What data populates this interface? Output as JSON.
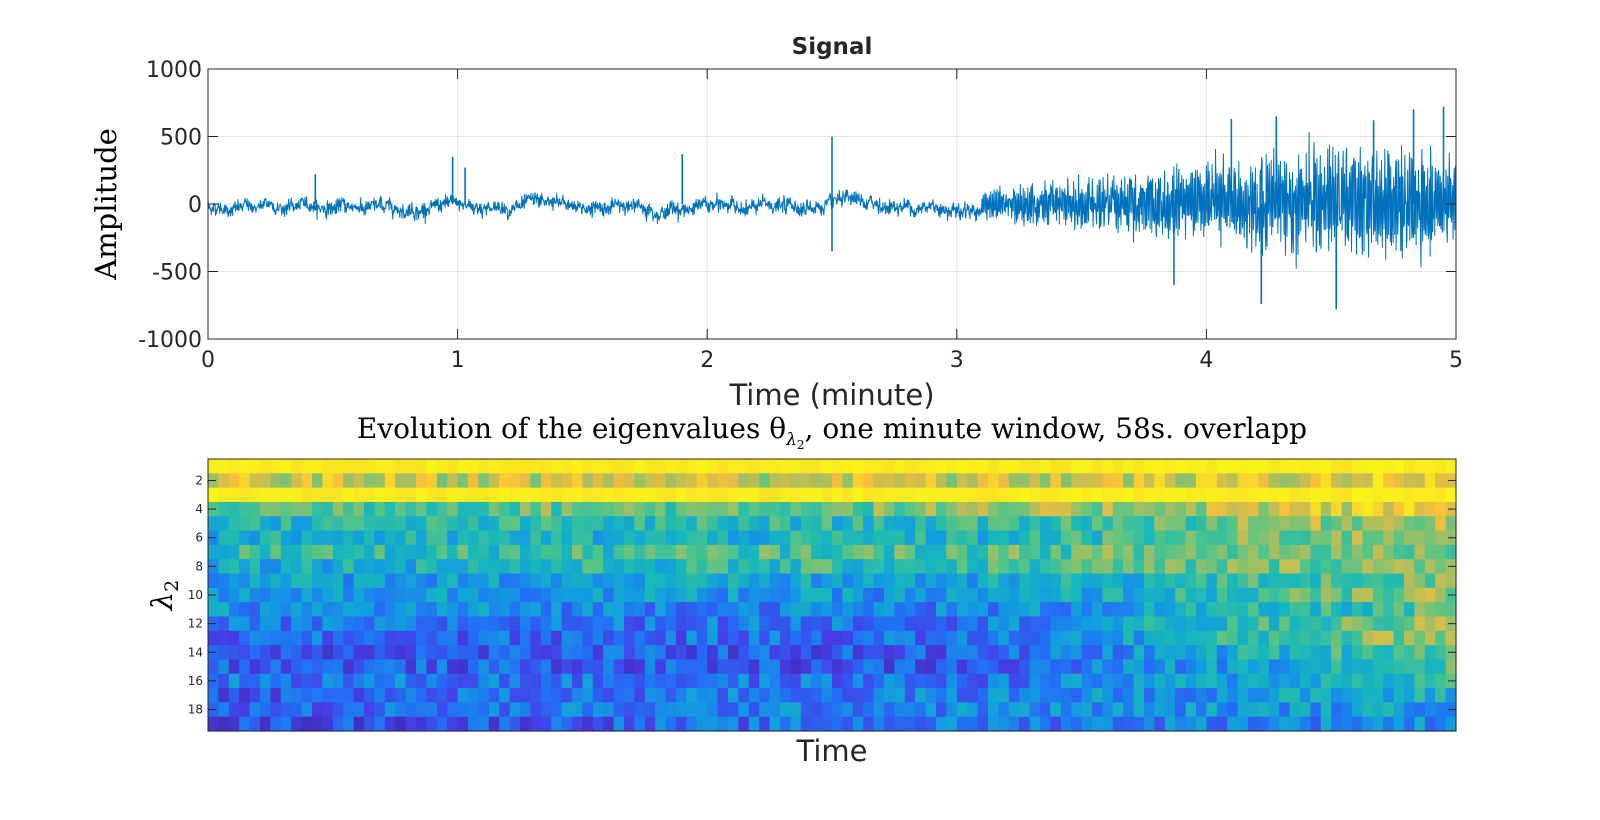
{
  "chart_data": [
    {
      "type": "line",
      "title": "Signal",
      "xlabel": "Time (minute)",
      "ylabel": "Amplitude",
      "xlim": [
        0,
        5
      ],
      "ylim": [
        -1000,
        1000
      ],
      "xticks": [
        0,
        1,
        2,
        3,
        4,
        5
      ],
      "xtick_labels": [
        "0",
        "1",
        "2",
        "3",
        "4",
        "5"
      ],
      "yticks": [
        1000,
        500,
        0,
        -500,
        -1000
      ],
      "ytick_labels": [
        "1000",
        "500",
        "0",
        "-500",
        "-1000"
      ],
      "grid": true,
      "line_color": "#0072bd",
      "envelope": [
        {
          "t": 0.0,
          "amp": 60
        },
        {
          "t": 0.5,
          "amp": 65
        },
        {
          "t": 1.0,
          "amp": 70
        },
        {
          "t": 1.5,
          "amp": 65
        },
        {
          "t": 2.0,
          "amp": 70
        },
        {
          "t": 2.5,
          "amp": 75
        },
        {
          "t": 2.95,
          "amp": 70
        },
        {
          "t": 3.2,
          "amp": 120
        },
        {
          "t": 3.5,
          "amp": 200
        },
        {
          "t": 3.8,
          "amp": 260
        },
        {
          "t": 4.0,
          "amp": 320
        },
        {
          "t": 4.2,
          "amp": 380
        },
        {
          "t": 4.5,
          "amp": 430
        },
        {
          "t": 4.8,
          "amp": 440
        },
        {
          "t": 5.0,
          "amp": 300
        }
      ],
      "spikes": [
        {
          "t": 0.43,
          "value": 220
        },
        {
          "t": 0.98,
          "value": 350
        },
        {
          "t": 1.03,
          "value": 270
        },
        {
          "t": 1.9,
          "value": 370
        },
        {
          "t": 2.5,
          "value": 500
        },
        {
          "t": 2.5,
          "value": -350
        },
        {
          "t": 4.1,
          "value": 630
        },
        {
          "t": 4.28,
          "value": 650
        },
        {
          "t": 4.52,
          "value": -780
        },
        {
          "t": 4.67,
          "value": 620
        },
        {
          "t": 4.83,
          "value": 700
        },
        {
          "t": 4.95,
          "value": 720
        },
        {
          "t": 4.22,
          "value": -740
        },
        {
          "t": 3.87,
          "value": -600
        }
      ]
    },
    {
      "type": "heatmap",
      "title": "Evolution of the eigenvalues θ",
      "title_subscript_symbol": "λ",
      "title_subscript_index": "2",
      "title_suffix": ", one minute window, 58s. overlapp",
      "xlabel": "Time",
      "ylabel_symbol": "λ",
      "ylabel_index": "2",
      "rows": 19,
      "cols": 120,
      "yticks": [
        2,
        4,
        6,
        8,
        10,
        12,
        14,
        16,
        18
      ],
      "ytick_labels": [
        "2",
        "4",
        "6",
        "8",
        "10",
        "12",
        "14",
        "16",
        "18"
      ],
      "colormap": "parula",
      "value_range": [
        0,
        1
      ],
      "row_profiles": [
        [
          0.97,
          0.97,
          0.97
        ],
        [
          0.8,
          0.78,
          0.85
        ],
        [
          0.97,
          0.97,
          0.97
        ],
        [
          0.62,
          0.66,
          0.88
        ],
        [
          0.5,
          0.52,
          0.78
        ],
        [
          0.45,
          0.48,
          0.75
        ],
        [
          0.52,
          0.6,
          0.7
        ],
        [
          0.45,
          0.55,
          0.72
        ],
        [
          0.4,
          0.4,
          0.65
        ],
        [
          0.4,
          0.35,
          0.7
        ],
        [
          0.35,
          0.3,
          0.6
        ],
        [
          0.25,
          0.28,
          0.7
        ],
        [
          0.22,
          0.25,
          0.75
        ],
        [
          0.2,
          0.2,
          0.65
        ],
        [
          0.22,
          0.18,
          0.6
        ],
        [
          0.28,
          0.25,
          0.55
        ],
        [
          0.2,
          0.3,
          0.45
        ],
        [
          0.22,
          0.32,
          0.4
        ],
        [
          0.15,
          0.28,
          0.35
        ]
      ]
    }
  ]
}
